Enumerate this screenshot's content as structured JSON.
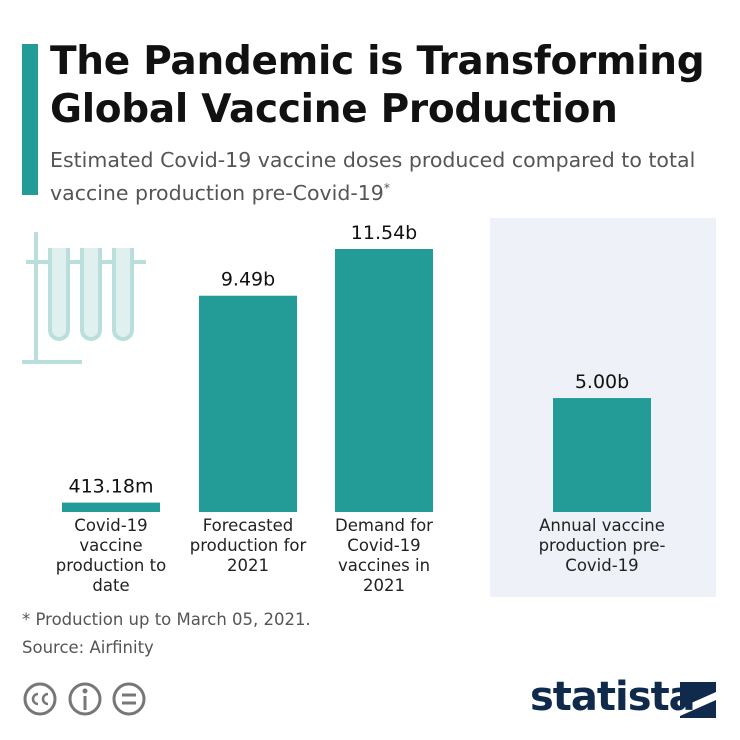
{
  "chart_data": {
    "type": "bar",
    "title": "The Pandemic is Transforming Global Vaccine Production",
    "subtitle": "Estimated Covid-19 vaccine doses produced compared to total vaccine production pre-Covid-19",
    "subtitle_note_marker": "*",
    "categories": [
      "Covid-19 vaccine production to date",
      "Forecasted production for 2021",
      "Demand for Covid-19 vaccines in 2021",
      "Annual vaccine production pre-Covid-19"
    ],
    "values": [
      0.41318,
      9.49,
      11.54,
      5.0
    ],
    "value_labels": [
      "413.18m",
      "9.49b",
      "11.54b",
      "5.00b"
    ],
    "color": "#239c98",
    "footnote": "* Production up to March 05, 2021.",
    "source": "Source: Airfinity",
    "brand": "statista"
  }
}
